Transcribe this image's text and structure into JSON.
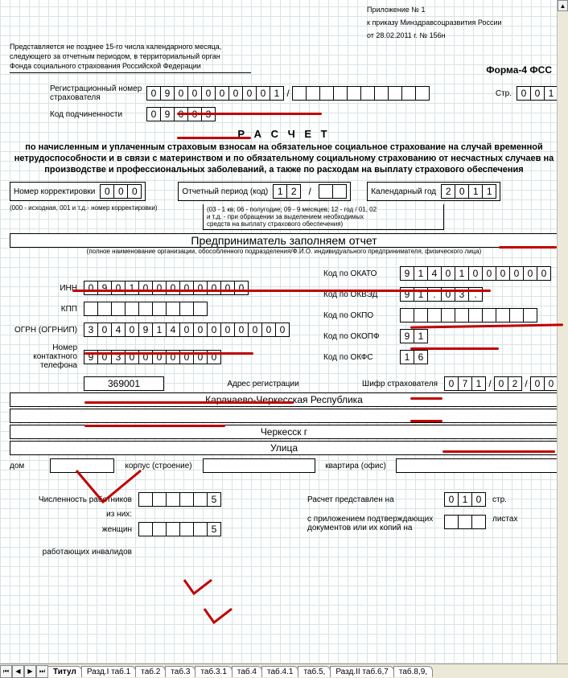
{
  "header": {
    "appendix": "Приложение  № 1",
    "order": "к приказу Минздравсоцразвития России",
    "date": "от 28.02.2011 г. № 156н",
    "submit_note_l1": "Представляется не позднее 15-го числа календарного месяца,",
    "submit_note_l2": "следующего за отчетным периодом, в территориальный орган",
    "submit_note_l3": "Фонда социального страхования Российской Федерации",
    "form_label": "Форма-4 ФСС"
  },
  "reg": {
    "label_l1": "Регистрационный номер",
    "label_l2": "страхователя",
    "cells": [
      "0",
      "9",
      "0",
      "0",
      "0",
      "0",
      "0",
      "0",
      "0",
      "1"
    ],
    "slash": "/",
    "after": [
      "",
      "",
      "",
      "",
      "",
      "",
      "",
      "",
      "",
      ""
    ],
    "page_lbl": "Стр.",
    "page": [
      "0",
      "0",
      "1"
    ],
    "sub_label": "Код подчиненности",
    "sub_cells": [
      "0",
      "9",
      "0",
      "0",
      "3"
    ]
  },
  "title": {
    "main": "Р А С Ч Е Т",
    "sub": "по начисленным и уплаченным страховым взносам на обязательное социальное страхование на случай временной нетрудоспособности и в связи с материнством и по обязательному социальному страхованию от несчастных случаев на производстве и профессиональных заболеваний, а также по расходам на выплату страхового обеспечения"
  },
  "period": {
    "corr_lbl": "Номер корректировки",
    "corr": [
      "0",
      "0",
      "0"
    ],
    "corr_note": "(000 - исходная, 001 и т.д.- номер корректировки)",
    "rep_lbl": "Отчетный период   (код)",
    "rep": [
      "1",
      "2"
    ],
    "rep_slash": "/",
    "rep_after": [
      "",
      ""
    ],
    "rep_note_l1": "(03 - 1 кв; 06 - полугодие; 09 - 9 месяцев; 12 - год / 01, 02",
    "rep_note_l2": "и  т.д. - при обращении за выделением необходимых",
    "rep_note_l3": "средств на выплату страхового обеспечения)",
    "year_lbl": "Календарный год",
    "year": [
      "2",
      "0",
      "1",
      "1"
    ]
  },
  "org": {
    "name": "Предприниматель заполняем отчет",
    "name_note": "(полное наименование организации, обособленного подразделения/Ф.И.О. индивидуального предпринимателя, физического лица)"
  },
  "codes": {
    "inn_lbl": "ИНН",
    "inn": [
      "0",
      "9",
      "0",
      "1",
      "0",
      "0",
      "0",
      "0",
      "0",
      "0",
      "0",
      "0"
    ],
    "kpp_lbl": "КПП",
    "kpp": [
      "",
      "",
      "",
      "",
      "",
      "",
      "",
      "",
      ""
    ],
    "ogrn_lbl": "ОГРН (ОГРНИП)",
    "ogrn": [
      "3",
      "0",
      "4",
      "0",
      "9",
      "1",
      "4",
      "0",
      "0",
      "0",
      "0",
      "0",
      "0",
      "0",
      "0"
    ],
    "phone_lbl_l1": "Номер контактного",
    "phone_lbl_l2": "телефона",
    "phone": [
      "9",
      "0",
      "3",
      "0",
      "0",
      "0",
      "0",
      "0",
      "0",
      "0"
    ],
    "okato_lbl": "Код по ОКАТО",
    "okato": [
      "9",
      "1",
      "4",
      "0",
      "1",
      "0",
      "0",
      "0",
      "0",
      "0",
      "0"
    ],
    "okved_lbl": "Код по ОКВЭД",
    "okved": [
      "9",
      "1",
      ".",
      "0",
      "3",
      "."
    ],
    "okpo_lbl": "Код по ОКПО",
    "okpo": [
      "",
      "",
      "",
      "",
      "",
      "",
      "",
      "",
      "",
      ""
    ],
    "okopf_lbl": "Код по ОКОПФ",
    "okopf": [
      "9",
      "1"
    ],
    "okfs_lbl": "Код по ОКФС",
    "okfs": [
      "1",
      "6"
    ]
  },
  "addr": {
    "index": "369001",
    "addr_lbl": "Адрес регистрации",
    "cipher_lbl": "Шифр страхователя",
    "cipher1": [
      "0",
      "7",
      "1"
    ],
    "cipher2": [
      "0",
      "2"
    ],
    "cipher3": [
      "0",
      "0"
    ],
    "slash": "/",
    "region": "Карачаево-Черкесская Республика",
    "district": "",
    "city": "Черкесск г",
    "street": "Улица",
    "house_lbl": "дом",
    "house": "",
    "bldg_lbl": "корпус (строение)",
    "bldg": "",
    "flat_lbl": "квартира (офис)",
    "flat": ""
  },
  "workers": {
    "count_lbl": "Численность работников",
    "count": [
      "",
      "",
      "",
      "",
      "",
      "5"
    ],
    "women_lbl_pre": "из них:",
    "women_lbl": "женщин",
    "women": [
      "",
      "",
      "",
      "",
      "",
      "5"
    ],
    "invalid_lbl": "работающих инвалидов",
    "presented_lbl": "Расчет представлен на",
    "presented": [
      "0",
      "1",
      "0"
    ],
    "presented_suffix": "стр.",
    "attach_l1": "с приложением подтверждающих",
    "attach_l2": "документов или их копий на",
    "attach": [
      "",
      "",
      ""
    ],
    "attach_suffix": "листах"
  },
  "tabs": {
    "nav": [
      "⏮",
      "◀",
      "▶",
      "⏭"
    ],
    "items": [
      "Титул",
      "Разд.I таб.1",
      "таб.2",
      "таб.3",
      "таб.3.1",
      "таб.4",
      "таб.4.1",
      "таб.5,",
      "Разд.II таб.6,7",
      "таб.8,9,"
    ],
    "active_index": 0
  },
  "marks": {
    "underline_color": "#c00000",
    "check_color": "#c00000"
  }
}
